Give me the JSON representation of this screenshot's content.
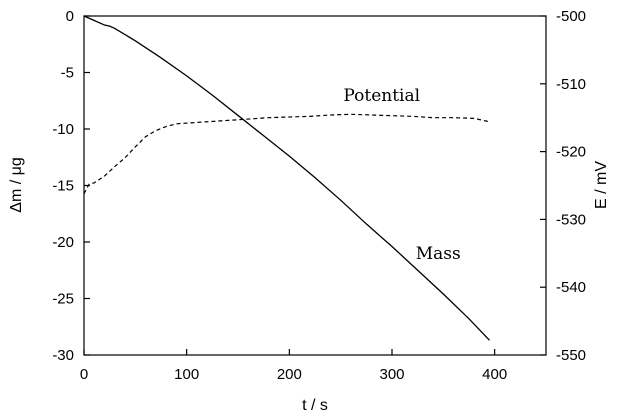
{
  "chart_data": {
    "type": "line",
    "xlabel": "t / s",
    "ylabel_left": "Δm / μg",
    "ylabel_right": "E / mV",
    "xlim": [
      0,
      450
    ],
    "ylim_left": [
      -30,
      0
    ],
    "ylim_right": [
      -550,
      -500
    ],
    "x_ticks": [
      0,
      100,
      200,
      300,
      400
    ],
    "y_left_ticks": [
      0,
      -5,
      -10,
      -15,
      -20,
      -25,
      -30
    ],
    "y_right_ticks": [
      -500,
      -510,
      -520,
      -530,
      -540,
      -550
    ],
    "grid": false,
    "legend": "none",
    "series": [
      {
        "name": "Mass",
        "axis": "left",
        "style": "solid",
        "x": [
          0,
          10,
          20,
          25,
          30,
          50,
          75,
          100,
          125,
          150,
          175,
          200,
          225,
          250,
          275,
          300,
          325,
          350,
          375,
          395
        ],
        "y": [
          0,
          -0.4,
          -0.8,
          -0.9,
          -1.1,
          -2.2,
          -3.7,
          -5.3,
          -7.0,
          -8.8,
          -10.6,
          -12.4,
          -14.3,
          -16.3,
          -18.4,
          -20.4,
          -22.5,
          -24.6,
          -26.8,
          -28.7
        ]
      },
      {
        "name": "Potential",
        "axis": "right",
        "style": "dashed",
        "x": [
          0,
          5,
          10,
          20,
          30,
          40,
          50,
          60,
          70,
          80,
          90,
          100,
          120,
          140,
          160,
          180,
          200,
          220,
          240,
          260,
          280,
          300,
          320,
          340,
          360,
          380,
          395
        ],
        "y": [
          -526.2,
          -524.8,
          -524.6,
          -523.6,
          -522.2,
          -520.9,
          -519.3,
          -517.8,
          -516.9,
          -516.3,
          -515.9,
          -515.8,
          -515.6,
          -515.4,
          -515.2,
          -515.0,
          -514.9,
          -514.8,
          -514.6,
          -514.5,
          -514.6,
          -514.7,
          -514.8,
          -515.0,
          -515.0,
          -515.1,
          -515.6
        ]
      }
    ],
    "annotations": [
      {
        "text": "Potential",
        "x": 290,
        "y_right": -512.5
      },
      {
        "text": "Mass",
        "x": 345,
        "y_left": -21.5
      }
    ]
  }
}
